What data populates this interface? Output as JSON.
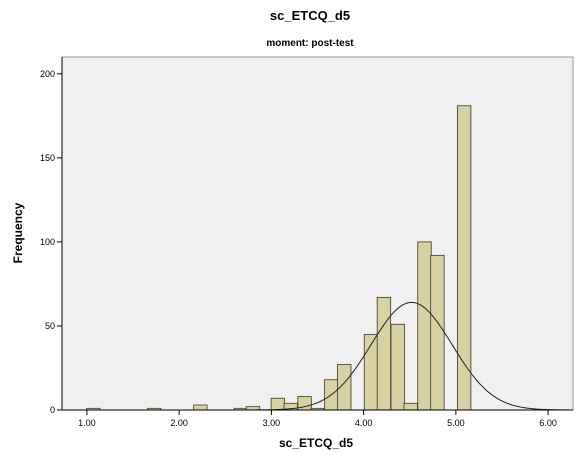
{
  "chart_data": {
    "type": "bar",
    "title": "sc_ETCQ_d5",
    "subtitle": "moment: post-test",
    "xlabel": "sc_ETCQ_d5",
    "ylabel": "Frequency",
    "xlim": [
      0.73,
      6.27
    ],
    "ylim": [
      0,
      210
    ],
    "x_ticks": [
      1.0,
      2.0,
      3.0,
      4.0,
      5.0,
      6.0
    ],
    "x_tick_labels": [
      "1.00",
      "2.00",
      "3.00",
      "4.00",
      "5.00",
      "6.00"
    ],
    "y_ticks": [
      0,
      50,
      100,
      150,
      200
    ],
    "y_tick_labels": [
      "0",
      "50",
      "100",
      "150",
      "200"
    ],
    "bin_width": 0.146,
    "bins": [
      {
        "x": 1.07,
        "count": 1
      },
      {
        "x": 1.73,
        "count": 1
      },
      {
        "x": 2.23,
        "count": 3
      },
      {
        "x": 2.67,
        "count": 1
      },
      {
        "x": 2.8,
        "count": 2
      },
      {
        "x": 3.07,
        "count": 7
      },
      {
        "x": 3.21,
        "count": 4
      },
      {
        "x": 3.36,
        "count": 8
      },
      {
        "x": 3.5,
        "count": 1
      },
      {
        "x": 3.65,
        "count": 18
      },
      {
        "x": 3.79,
        "count": 27
      },
      {
        "x": 4.08,
        "count": 45
      },
      {
        "x": 4.22,
        "count": 67
      },
      {
        "x": 4.37,
        "count": 51
      },
      {
        "x": 4.51,
        "count": 4
      },
      {
        "x": 4.66,
        "count": 100
      },
      {
        "x": 4.8,
        "count": 92
      },
      {
        "x": 5.09,
        "count": 181
      }
    ],
    "normal_curve": {
      "mean": 4.52,
      "sd": 0.44,
      "peak": 64
    },
    "colors": {
      "bar_fill": "#d8d1a1",
      "bar_stroke": "#3a3a2a",
      "plot_bg": "#f0f0f0",
      "curve": "#222222"
    },
    "grid": false
  }
}
